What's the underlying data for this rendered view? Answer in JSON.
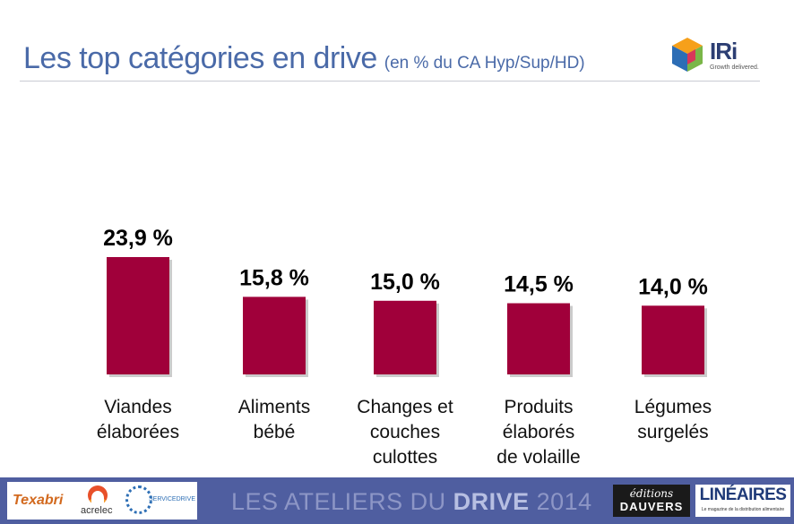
{
  "header": {
    "title": "Les top catégories en drive",
    "subtitle": "(en % du CA Hyp/Sup/HD)"
  },
  "logo": {
    "name": "IRi",
    "tagline": "Growth delivered."
  },
  "chart_data": {
    "type": "bar",
    "categories": [
      [
        "Viandes",
        "élaborées"
      ],
      [
        "Aliments",
        "bébé"
      ],
      [
        "Changes et",
        "couches",
        "culottes"
      ],
      [
        "Produits",
        "élaborés",
        "de volaille"
      ],
      [
        "Légumes",
        "surgelés"
      ]
    ],
    "values": [
      23.9,
      15.8,
      15.0,
      14.5,
      14.0
    ],
    "data_labels": [
      "23,9 %",
      "15,8 %",
      "15,0 %",
      "14,5 %",
      "14,0 %"
    ],
    "bar_color": "#a0003a",
    "ylim": [
      0,
      26
    ],
    "grid": false,
    "legend": "none"
  },
  "footer": {
    "event_light": "LES ATELIERS DU ",
    "event_bold": "DRIVE",
    "event_year": " 2014",
    "sponsors": [
      "Texabri",
      "acrelec",
      "SERVICEDRIVE"
    ],
    "publisher1_line1": "éditions",
    "publisher1_line2": "DAUVERS",
    "publisher2_name": "LINÉAIRES",
    "publisher2_tag": "Le magazine de la distribution alimentaire"
  },
  "colors": {
    "title": "#4a6aa8",
    "footer_bg": "#4f5ea0",
    "bar": "#a0003a"
  }
}
